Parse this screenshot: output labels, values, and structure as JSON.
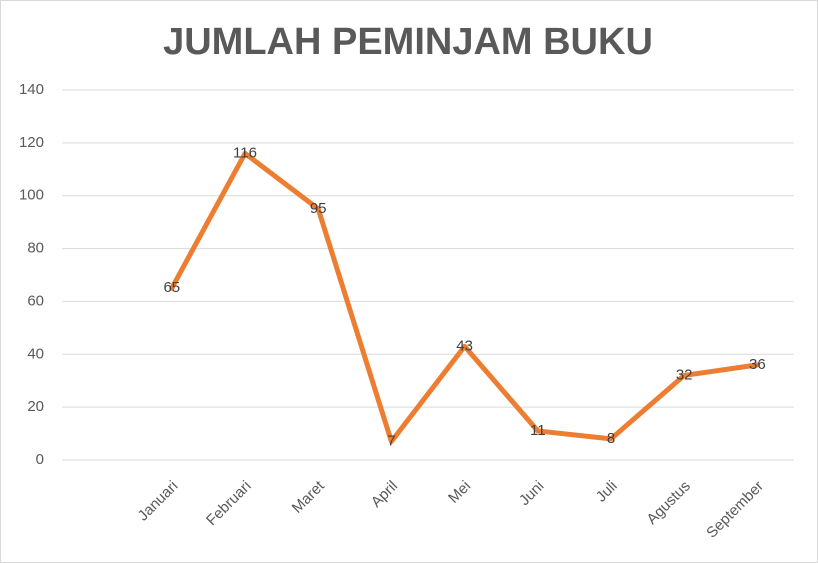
{
  "chart_data": {
    "type": "line",
    "title": "JUMLAH PEMINJAM BUKU",
    "categories": [
      null,
      "Januari",
      "Februari",
      "Maret",
      "April",
      "Mei",
      "Juni",
      "Juli",
      "Agustus",
      "September"
    ],
    "values": [
      null,
      65,
      116,
      95,
      7,
      43,
      11,
      8,
      32,
      36
    ],
    "color": "#ed7d31",
    "ylim": [
      0,
      140
    ],
    "yticks": [
      0,
      20,
      40,
      60,
      80,
      100,
      120,
      140
    ],
    "grid": true,
    "data_labels": true
  }
}
